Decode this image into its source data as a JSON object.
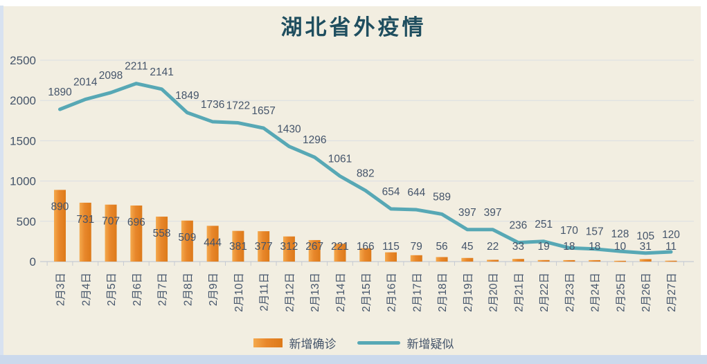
{
  "chart_data": {
    "type": "combo",
    "title": "湖北省外疫情",
    "categories": [
      "2月3日",
      "2月4日",
      "2月5日",
      "2月6日",
      "2月7日",
      "2月8日",
      "2月9日",
      "2月10日",
      "2月11日",
      "2月12日",
      "2月13日",
      "2月14日",
      "2月15日",
      "2月16日",
      "2月17日",
      "2月18日",
      "2月19日",
      "2月20日",
      "2月21日",
      "2月22日",
      "2月23日",
      "2月24日",
      "2月25日",
      "2月26日",
      "2月27日"
    ],
    "series": [
      {
        "name": "新增确诊",
        "type": "bar",
        "values": [
          890,
          731,
          707,
          696,
          558,
          509,
          444,
          381,
          377,
          312,
          267,
          221,
          166,
          115,
          79,
          56,
          45,
          22,
          33,
          19,
          18,
          18,
          10,
          31,
          11
        ]
      },
      {
        "name": "新增疑似",
        "type": "line",
        "values": [
          1890,
          2014,
          2098,
          2211,
          2141,
          1849,
          1736,
          1722,
          1657,
          1430,
          1296,
          1061,
          882,
          654,
          644,
          589,
          397,
          397,
          236,
          251,
          170,
          157,
          128,
          105,
          120
        ]
      }
    ],
    "y_axis": {
      "min": 0,
      "max": 2500,
      "step": 500,
      "ticks": [
        0,
        500,
        1000,
        1500,
        2000,
        2500
      ]
    },
    "grid": true,
    "legend_position": "bottom",
    "data_labels": true
  },
  "colors": {
    "frame": "#ffffff",
    "chart_canvas": "#f2eee1",
    "bottom_strip": "#cbd9ec",
    "bar_fill": "#e8872b",
    "bar_fill_light": "#f4a94d",
    "bar_fill_dark": "#dd7a1a",
    "line_stroke": "#57a8b5",
    "gridline": "#dadde3",
    "axis_line": "#c6cad3",
    "data_label": "#44546a",
    "title": "#1f4e5f"
  }
}
